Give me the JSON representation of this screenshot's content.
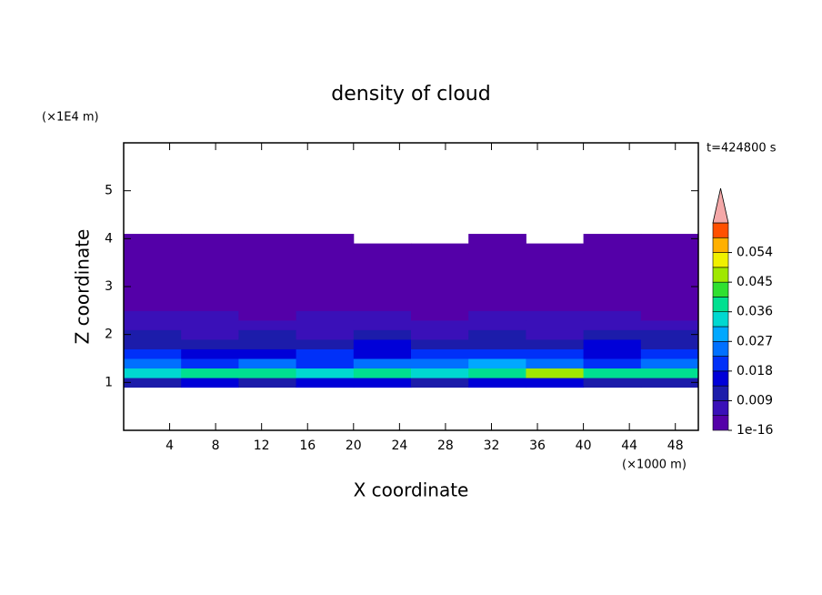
{
  "chart_data": {
    "type": "contour",
    "title": "density of cloud",
    "xlabel": "X coordinate",
    "ylabel": "Z coordinate",
    "xunit": "(×1000 m)",
    "yunit": "(×1E4 m)",
    "annotation": "t=424800 s",
    "xlim": [
      0,
      50
    ],
    "ylim": [
      0,
      6
    ],
    "xticks": [
      4,
      8,
      12,
      16,
      20,
      24,
      28,
      32,
      36,
      40,
      44,
      48
    ],
    "yticks": [
      1,
      2,
      3,
      4,
      5
    ],
    "xbins": [
      0,
      5,
      10,
      15,
      20,
      25,
      30,
      35,
      40,
      45,
      50
    ],
    "ybins": [
      0.9,
      1.1,
      1.3,
      1.5,
      1.7,
      1.9,
      2.1,
      2.3,
      2.5,
      2.7,
      2.9,
      3.1,
      3.3,
      3.5,
      3.7,
      3.9,
      4.1
    ],
    "values": [
      [
        0.012,
        0.014,
        0.013,
        0.015,
        0.014,
        0.013,
        0.014,
        0.015,
        0.013,
        0.012
      ],
      [
        0.034,
        0.038,
        0.036,
        0.032,
        0.037,
        0.035,
        0.04,
        0.046,
        0.038,
        0.036
      ],
      [
        0.024,
        0.022,
        0.026,
        0.021,
        0.023,
        0.025,
        0.027,
        0.024,
        0.022,
        0.023
      ],
      [
        0.018,
        0.016,
        0.017,
        0.019,
        0.016,
        0.018,
        0.02,
        0.019,
        0.017,
        0.018
      ],
      [
        0.012,
        0.013,
        0.011,
        0.012,
        0.014,
        0.013,
        0.012,
        0.013,
        0.014,
        0.012
      ],
      [
        0.009,
        0.008,
        0.01,
        0.008,
        0.009,
        0.008,
        0.009,
        0.008,
        0.01,
        0.009
      ],
      [
        0.006,
        0.007,
        0.006,
        0.006,
        0.005,
        0.007,
        0.006,
        0.006,
        0.007,
        0.006
      ],
      [
        0.005,
        0.005,
        0.004,
        0.005,
        0.005,
        0.004,
        0.005,
        0.005,
        0.005,
        0.004
      ],
      [
        0.004,
        0.003,
        0.003,
        0.004,
        0.003,
        0.003,
        0.003,
        0.004,
        0.003,
        0.003
      ],
      [
        0.002,
        0.002,
        0.003,
        0.002,
        0.002,
        0.002,
        0.002,
        0.002,
        0.002,
        0.002
      ],
      [
        0.001,
        0.001,
        0.001,
        0.001,
        0.001,
        0.001,
        0.001,
        0.001,
        0.001,
        0.001
      ],
      [
        0.001,
        0.001,
        0.001,
        0.001,
        0.001,
        0.001,
        0.001,
        0.001,
        0.001,
        0.001
      ],
      [
        0.001,
        0.001,
        0.001,
        0.001,
        0.001,
        0.001,
        0.001,
        0.001,
        0.001,
        0.001
      ],
      [
        0.001,
        0.001,
        0.001,
        0.001,
        0.001,
        0.001,
        0.001,
        0.001,
        0.001,
        0.001
      ],
      [
        0.001,
        0.001,
        0.001,
        0.001,
        0.001,
        0.001,
        0.001,
        0.001,
        0.001,
        0.001
      ],
      [
        0.001,
        0.001,
        0.001,
        0.001,
        null,
        null,
        0.001,
        null,
        0.001,
        0.001
      ]
    ],
    "colorbar": {
      "levels": [
        1e-16,
        0.0045,
        0.009,
        0.0135,
        0.018,
        0.0225,
        0.027,
        0.0315,
        0.036,
        0.0405,
        0.045,
        0.0495,
        0.054,
        0.0585,
        0.063
      ],
      "colors": [
        "#5400a8",
        "#3a10b8",
        "#1c1caa",
        "#0000d8",
        "#0030f8",
        "#0070ff",
        "#00a8ff",
        "#00d8d0",
        "#00e090",
        "#30e030",
        "#a0e800",
        "#f0f000",
        "#ffb000",
        "#ff5000"
      ],
      "extend_color": "#f4a8a8",
      "ticks": [
        {
          "value": 1e-16,
          "label": "1e-16"
        },
        0.009,
        0.018,
        0.027,
        0.036,
        0.045,
        0.054
      ]
    }
  }
}
